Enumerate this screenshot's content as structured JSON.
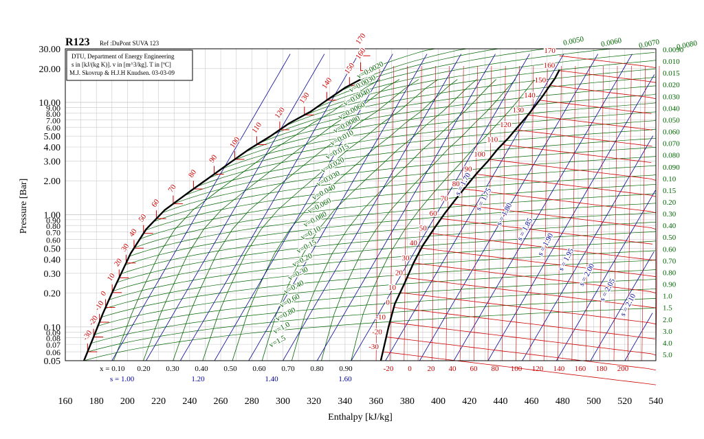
{
  "chart_data": {
    "type": "line",
    "title": "R123",
    "subtitle": "Ref :DuPont SUVA 123",
    "info_box": [
      "DTU, Department of Energy Engineering",
      "s in [kJ/(kg K)]. v in [m^3/kg]. T in [ºC]",
      "M.J. Skovrup & H.J.H Knudsen. 03-03-09"
    ],
    "xlabel": "Enthalpy [kJ/kg]",
    "ylabel": "Pressure [Bar]",
    "x_scale": "linear",
    "y_scale": "log",
    "xlim": [
      160,
      540
    ],
    "ylim": [
      0.05,
      30
    ],
    "grid": true,
    "x_ticks": [
      160,
      180,
      200,
      220,
      240,
      260,
      280,
      300,
      320,
      340,
      360,
      380,
      400,
      420,
      440,
      460,
      480,
      500,
      520,
      540
    ],
    "y_tick_labels": [
      "0.05",
      "0.06",
      "0.07",
      "0.08",
      "0.09",
      "0.10",
      "0.20",
      "0.30",
      "0.40",
      "0.50",
      "0.60",
      "0.70",
      "0.80",
      "0.90",
      "1.00",
      "2.00",
      "3.00",
      "4.00",
      "5.00",
      "6.00",
      "7.00",
      "8.00",
      "9.00",
      "10.00",
      "20.00",
      "30.00"
    ],
    "saturation_liquid": {
      "name": "saturated liquid",
      "points": [
        [
          172,
          0.05
        ],
        [
          178,
          0.08
        ],
        [
          184,
          0.13
        ],
        [
          190,
          0.2
        ],
        [
          196,
          0.3
        ],
        [
          202,
          0.45
        ],
        [
          212,
          0.74
        ],
        [
          224,
          1.1
        ],
        [
          240,
          1.6
        ],
        [
          254,
          2.2
        ],
        [
          266,
          2.9
        ],
        [
          278,
          3.8
        ],
        [
          292,
          5.0
        ],
        [
          304,
          6.5
        ],
        [
          318,
          8.3
        ],
        [
          328,
          10.4
        ],
        [
          340,
          13.5
        ],
        [
          350,
          16
        ]
      ]
    },
    "saturation_vapor": {
      "name": "saturated vapor",
      "points": [
        [
          363,
          0.05
        ],
        [
          368,
          0.1
        ],
        [
          372,
          0.16
        ],
        [
          378,
          0.24
        ],
        [
          384,
          0.37
        ],
        [
          390,
          0.53
        ],
        [
          397,
          0.74
        ],
        [
          404,
          1.02
        ],
        [
          411,
          1.36
        ],
        [
          418,
          1.8
        ],
        [
          425,
          2.35
        ],
        [
          432,
          3.0
        ],
        [
          438,
          3.8
        ],
        [
          445,
          4.8
        ],
        [
          451,
          6.0
        ],
        [
          457,
          7.5
        ],
        [
          462,
          9.2
        ],
        [
          467,
          11.3
        ],
        [
          471,
          13.6
        ],
        [
          475,
          16.3
        ],
        [
          478,
          19.5
        ]
      ]
    },
    "temperature_labels_liquid": [
      "-30",
      "-20",
      "-10",
      "0",
      "10",
      "20",
      "30",
      "40",
      "50",
      "60",
      "70",
      "80",
      "90",
      "100",
      "110",
      "120",
      "130",
      "140",
      "150",
      "160",
      "170"
    ],
    "temperature_labels_vapor": [
      "-30",
      "-20",
      "-10",
      "0",
      "10",
      "20",
      "30",
      "40",
      "50",
      "60",
      "70",
      "80",
      "90",
      "100",
      "110",
      "120",
      "130",
      "140",
      "150",
      "160",
      "170"
    ],
    "temperature_labels_superheat": [
      "-20",
      "0",
      "20",
      "40",
      "60",
      "80",
      "100",
      "120",
      "140",
      "160",
      "180",
      "200"
    ],
    "quality_labels": [
      "x = 0.10",
      "0.20",
      "0.30",
      "0.40",
      "0.50",
      "0.60",
      "0.70",
      "0.80",
      "0.90"
    ],
    "entropy_bottom_labels": [
      "s = 1.00",
      "1.20",
      "1.40",
      "1.60"
    ],
    "entropy_labels": [
      "s = 1.70",
      "s = 1.75",
      "s = 1.80",
      "s = 1.85",
      "s = 1.90",
      "s = 1.95",
      "s = 2.00",
      "s = 2.05",
      "s = 2.10"
    ],
    "volume_labels_chart": [
      "v=0.0020",
      "v=0.0030",
      "v=0.0040",
      "v=0.0060",
      "v=0.0080",
      "v=0.010",
      "v=0.015",
      "v=0.020",
      "v=0.030",
      "v=0.040",
      "v=0.060",
      "v=0.080",
      "v=0.10",
      "v=0.15",
      "v=0.20",
      "v=0.30",
      "v=0.40",
      "v=0.60",
      "v=0.80",
      "v=1.0",
      "v=1.5"
    ],
    "volume_labels_right": [
      "0.0050",
      "0.0060",
      "0.0070",
      "0.0080",
      "0.0090",
      "0.010",
      "0.015",
      "0.020",
      "0.030",
      "0.040",
      "0.050",
      "0.060",
      "0.070",
      "0.080",
      "0.090",
      "0.10",
      "0.15",
      "0.20",
      "0.30",
      "0.40",
      "0.50",
      "0.60",
      "0.70",
      "0.80",
      "0.90",
      "1.0",
      "1.5",
      "2.0",
      "3.0",
      "4.0",
      "5.0"
    ],
    "colors": {
      "grid": "#c8c8c8",
      "saturation": "#000000",
      "isotherm": "#cc0000",
      "isochore": "#006600",
      "isentrope": "#000099",
      "quality": "#006600"
    }
  }
}
